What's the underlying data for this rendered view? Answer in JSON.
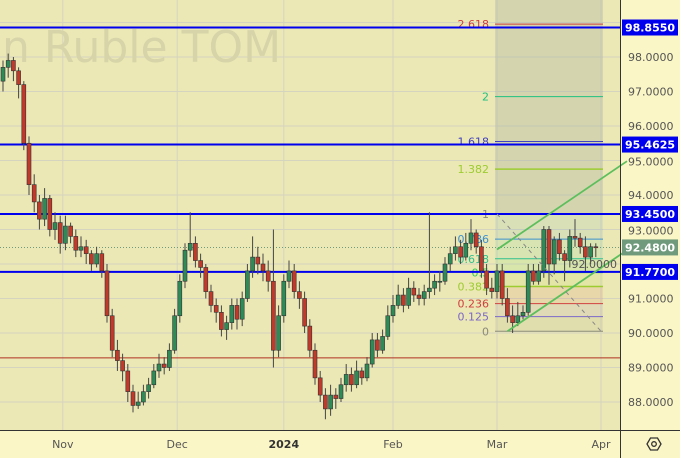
{
  "watermark": "n Ruble TOM",
  "colors": {
    "plot_bg": "#ebe8b5",
    "axis_bg": "#fbf6c6",
    "up": "#2e8b57",
    "down": "#c0392b",
    "level_line": "#0000ee",
    "last_price_badge": "#6f9b7c",
    "support_red": "#b03020",
    "channel": "#5cbf5c"
  },
  "settings_icon": "gear-hexagon-icon",
  "chart_data": {
    "type": "candlestick",
    "ylim": [
      87.0,
      99.2
    ],
    "grid": true,
    "y_ticks": [
      "88.0000",
      "89.0000",
      "90.0000",
      "91.0000",
      "92.0000",
      "93.0000",
      "94.0000",
      "95.0000",
      "96.0000",
      "97.0000",
      "98.0000"
    ],
    "y_tick_values": [
      88,
      89,
      90,
      91,
      92,
      93,
      94,
      95,
      96,
      97,
      98
    ],
    "x_ticks": [
      {
        "label": "Nov",
        "bar": 11.5,
        "bold": false
      },
      {
        "label": "Dec",
        "bar": 33.5,
        "bold": false
      },
      {
        "label": "2024",
        "bar": 54,
        "bold": true
      },
      {
        "label": "Feb",
        "bar": 75,
        "bold": false
      },
      {
        "label": "Mar",
        "bar": 95,
        "bold": false
      },
      {
        "label": "Apr",
        "bar": 115,
        "bold": false
      }
    ],
    "candles_ohlc": [
      [
        97.3,
        97.9,
        97.0,
        97.7
      ],
      [
        97.7,
        98.1,
        97.4,
        97.9
      ],
      [
        97.9,
        98.0,
        97.3,
        97.6
      ],
      [
        97.6,
        97.7,
        96.8,
        97.2
      ],
      [
        97.2,
        97.3,
        95.3,
        95.5
      ],
      [
        95.5,
        95.7,
        94.0,
        94.3
      ],
      [
        94.3,
        94.6,
        93.5,
        93.8
      ],
      [
        93.8,
        94.0,
        93.0,
        93.3
      ],
      [
        93.3,
        94.2,
        93.1,
        93.9
      ],
      [
        93.9,
        94.0,
        92.8,
        93.0
      ],
      [
        93.0,
        93.5,
        92.7,
        93.2
      ],
      [
        93.2,
        93.4,
        92.3,
        92.6
      ],
      [
        92.6,
        93.4,
        92.4,
        93.1
      ],
      [
        93.1,
        93.2,
        92.6,
        92.8
      ],
      [
        92.8,
        93.0,
        92.2,
        92.4
      ],
      [
        92.4,
        92.8,
        92.2,
        92.5
      ],
      [
        92.5,
        92.7,
        92.0,
        92.3
      ],
      [
        92.3,
        92.4,
        91.8,
        92.0
      ],
      [
        92.0,
        92.5,
        91.9,
        92.3
      ],
      [
        92.3,
        92.4,
        91.6,
        91.8
      ],
      [
        91.8,
        92.0,
        90.3,
        90.5
      ],
      [
        90.5,
        90.7,
        89.3,
        89.5
      ],
      [
        89.5,
        89.8,
        88.9,
        89.2
      ],
      [
        89.2,
        89.4,
        88.6,
        88.9
      ],
      [
        88.9,
        89.1,
        88.0,
        88.3
      ],
      [
        88.3,
        88.5,
        87.7,
        87.9
      ],
      [
        87.9,
        88.3,
        87.8,
        88.0
      ],
      [
        88.0,
        88.5,
        87.9,
        88.3
      ],
      [
        88.3,
        88.7,
        88.1,
        88.5
      ],
      [
        88.5,
        89.1,
        88.4,
        88.9
      ],
      [
        88.9,
        89.4,
        88.7,
        89.1
      ],
      [
        89.1,
        89.3,
        88.8,
        89.0
      ],
      [
        89.0,
        89.7,
        88.9,
        89.5
      ],
      [
        89.5,
        90.7,
        89.4,
        90.5
      ],
      [
        90.5,
        91.7,
        90.3,
        91.5
      ],
      [
        91.5,
        92.6,
        91.3,
        92.4
      ],
      [
        92.4,
        93.5,
        92.2,
        92.6
      ],
      [
        92.6,
        92.8,
        91.9,
        92.1
      ],
      [
        92.1,
        92.3,
        91.6,
        91.9
      ],
      [
        91.9,
        92.0,
        91.0,
        91.2
      ],
      [
        91.2,
        91.4,
        90.6,
        90.8
      ],
      [
        90.8,
        91.0,
        90.3,
        90.6
      ],
      [
        90.6,
        90.8,
        89.9,
        90.1
      ],
      [
        90.1,
        90.5,
        89.8,
        90.3
      ],
      [
        90.3,
        91.0,
        90.1,
        90.8
      ],
      [
        90.8,
        91.0,
        90.1,
        90.4
      ],
      [
        90.4,
        91.2,
        90.2,
        91.0
      ],
      [
        91.0,
        92.0,
        90.9,
        91.8
      ],
      [
        91.8,
        92.8,
        91.6,
        92.2
      ],
      [
        92.2,
        92.5,
        91.7,
        92.0
      ],
      [
        92.0,
        92.3,
        91.5,
        91.8
      ],
      [
        91.8,
        92.1,
        91.2,
        91.5
      ],
      [
        91.5,
        93.0,
        89.0,
        89.5
      ],
      [
        89.5,
        90.8,
        89.3,
        90.5
      ],
      [
        90.5,
        91.7,
        90.3,
        91.5
      ],
      [
        91.5,
        92.1,
        91.3,
        91.8
      ],
      [
        91.8,
        92.0,
        91.0,
        91.2
      ],
      [
        91.2,
        91.5,
        90.7,
        91.0
      ],
      [
        91.0,
        91.2,
        90.0,
        90.2
      ],
      [
        90.2,
        90.4,
        89.3,
        89.5
      ],
      [
        89.5,
        89.7,
        88.5,
        88.7
      ],
      [
        88.7,
        88.9,
        88.0,
        88.2
      ],
      [
        88.2,
        88.4,
        87.5,
        87.8
      ],
      [
        87.8,
        88.5,
        87.6,
        88.2
      ],
      [
        88.2,
        88.4,
        87.8,
        88.1
      ],
      [
        88.1,
        88.7,
        88.0,
        88.5
      ],
      [
        88.5,
        89.1,
        88.3,
        88.8
      ],
      [
        88.8,
        89.0,
        88.3,
        88.5
      ],
      [
        88.5,
        89.2,
        88.4,
        88.9
      ],
      [
        88.9,
        89.0,
        88.5,
        88.7
      ],
      [
        88.7,
        89.3,
        88.6,
        89.1
      ],
      [
        89.1,
        90.0,
        89.0,
        89.8
      ],
      [
        89.8,
        90.0,
        89.3,
        89.5
      ],
      [
        89.5,
        90.1,
        89.4,
        89.9
      ],
      [
        89.9,
        90.8,
        89.8,
        90.5
      ],
      [
        90.5,
        91.1,
        90.3,
        90.8
      ],
      [
        90.8,
        91.4,
        90.7,
        91.1
      ],
      [
        91.1,
        91.3,
        90.6,
        90.8
      ],
      [
        90.8,
        91.6,
        90.7,
        91.3
      ],
      [
        91.3,
        91.5,
        90.9,
        91.1
      ],
      [
        91.1,
        91.3,
        90.8,
        91.0
      ],
      [
        91.0,
        91.4,
        90.8,
        91.2
      ],
      [
        91.2,
        93.5,
        91.0,
        91.3
      ],
      [
        91.3,
        91.7,
        91.1,
        91.5
      ],
      [
        91.5,
        91.8,
        91.2,
        91.5
      ],
      [
        91.5,
        92.2,
        91.4,
        92.0
      ],
      [
        92.0,
        92.5,
        91.8,
        92.3
      ],
      [
        92.3,
        92.8,
        92.1,
        92.5
      ],
      [
        92.5,
        92.7,
        92.0,
        92.2
      ],
      [
        92.2,
        92.9,
        92.1,
        92.6
      ],
      [
        92.6,
        93.3,
        92.4,
        92.9
      ],
      [
        92.9,
        93.0,
        92.3,
        92.5
      ],
      [
        92.5,
        92.7,
        91.6,
        91.8
      ],
      [
        91.8,
        92.0,
        91.1,
        91.3
      ],
      [
        91.3,
        91.6,
        91.0,
        91.2
      ],
      [
        91.2,
        92.0,
        91.0,
        91.8
      ],
      [
        91.8,
        92.0,
        90.8,
        91.0
      ],
      [
        91.0,
        91.3,
        90.3,
        90.5
      ],
      [
        90.5,
        90.8,
        90.0,
        90.3
      ],
      [
        90.3,
        90.9,
        90.2,
        90.5
      ],
      [
        90.5,
        90.8,
        90.4,
        90.6
      ],
      [
        90.6,
        92.0,
        90.5,
        91.8
      ],
      [
        91.8,
        92.0,
        91.4,
        91.5
      ],
      [
        91.5,
        92.0,
        91.4,
        91.8
      ],
      [
        91.8,
        93.1,
        91.6,
        93.0
      ],
      [
        93.0,
        93.1,
        91.4,
        92.0
      ],
      [
        92.0,
        92.8,
        91.7,
        92.7
      ],
      [
        92.7,
        92.9,
        92.1,
        92.3
      ],
      [
        92.3,
        92.4,
        91.5,
        92.1
      ],
      [
        92.1,
        93.0,
        91.9,
        92.8
      ],
      [
        92.8,
        93.3,
        92.5,
        92.75
      ],
      [
        92.75,
        92.9,
        92.3,
        92.5
      ],
      [
        92.5,
        92.8,
        91.8,
        92.2
      ],
      [
        92.2,
        92.6,
        92.0,
        92.5
      ],
      [
        92.5,
        92.6,
        92.2,
        92.48
      ]
    ],
    "horizontal_levels": [
      {
        "value": 98.855,
        "label": "98.8550"
      },
      {
        "value": 95.4625,
        "label": "95.4625"
      },
      {
        "value": 93.45,
        "label": "93.4500"
      },
      {
        "value": 91.77,
        "label": "91.7700"
      }
    ],
    "support_line": 89.28,
    "last_price": {
      "value": 92.48,
      "label": "92.4800"
    },
    "fibonacci": {
      "start_bar": 95,
      "end_bar": 115,
      "price_0": 90.05,
      "price_1": 93.45,
      "levels": [
        {
          "ratio": 0,
          "label": "0",
          "color": "#8a8a7a"
        },
        {
          "ratio": 0.125,
          "label": "0.125",
          "color": "#7b68c8"
        },
        {
          "ratio": 0.236,
          "label": "0.236",
          "color": "#d04040"
        },
        {
          "ratio": 0.382,
          "label": "0.382",
          "color": "#9ccc30"
        },
        {
          "ratio": 0.5,
          "label": "0.5",
          "color": "#33cc55"
        },
        {
          "ratio": 0.618,
          "label": "0.618",
          "color": "#30c090"
        },
        {
          "ratio": 0.786,
          "label": "0.786",
          "color": "#3c90d0"
        },
        {
          "ratio": 1,
          "label": "1",
          "color": "#8a8a7a"
        },
        {
          "ratio": 1.382,
          "label": "1.382",
          "color": "#9ccc30"
        },
        {
          "ratio": 1.618,
          "label": "1.618",
          "color": "#4040c0"
        },
        {
          "ratio": 2,
          "label": "2",
          "color": "#20c080"
        },
        {
          "ratio": 2.618,
          "label": "2.618",
          "color": "#d04040"
        }
      ]
    },
    "channel_lines": [
      {
        "from": [
          97,
          90.05
        ],
        "to": [
          120,
          92.4
        ]
      },
      {
        "from": [
          95,
          92.42
        ],
        "to": [
          120,
          94.98
        ]
      }
    ],
    "dashed_trend": {
      "from": [
        95,
        93.45
      ],
      "to": [
        115,
        90.05
      ]
    }
  }
}
